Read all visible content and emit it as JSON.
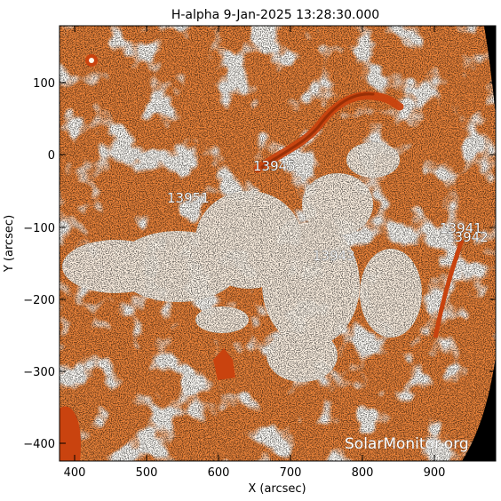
{
  "title": "H-alpha   9-Jan-2025 13:28:30.000",
  "xlabel": "X (arcsec)",
  "ylabel": "Y (arcsec)",
  "xticks": [
    "400",
    "500",
    "600",
    "700",
    "800",
    "900"
  ],
  "yticks": [
    "100",
    "0",
    "−100",
    "−200",
    "−300",
    "−400"
  ],
  "regions": [
    "13945",
    "13951",
    "13943",
    "13941",
    "13942"
  ],
  "watermark": "SolarMonitor.org",
  "colors": {
    "background": "#ffffff",
    "map_base": "#e8823a",
    "bright": "#fff6ea",
    "dark": "#c9430f",
    "limb": "#000000"
  }
}
